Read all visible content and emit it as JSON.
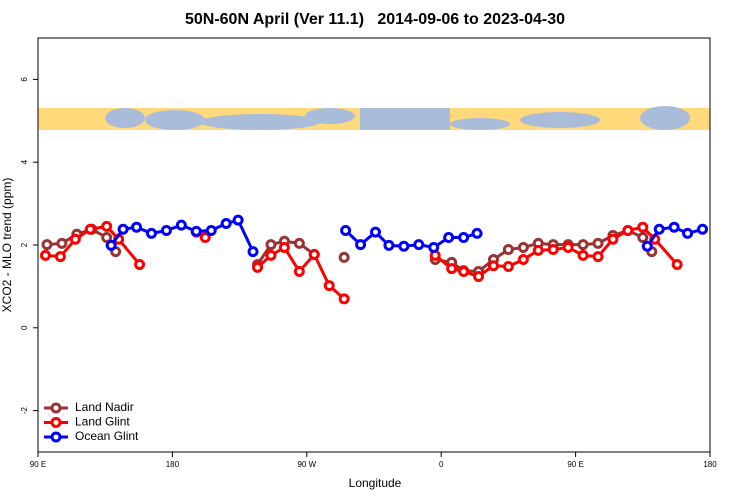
{
  "chart_data": {
    "type": "line",
    "title": "50N-60N April (Ver 11.1)   2014-09-06 to 2023-04-30",
    "xlabel": "Longitude",
    "ylabel": "XCO2 - MLO trend (ppm)",
    "xlim": [
      90,
      540
    ],
    "ylim": [
      -3,
      7
    ],
    "xticks": [
      {
        "value": 90,
        "label": "90 E"
      },
      180,
      {
        "value": 270,
        "label": "90 W"
      },
      {
        "value": 360,
        "label": "0"
      },
      {
        "value": 450,
        "label": "90 E"
      },
      {
        "value": 540,
        "label": "180"
      }
    ],
    "yticks": [
      -2,
      0,
      2,
      4,
      6
    ],
    "legend": "lower left",
    "series": [
      {
        "name": "Land Nadir",
        "color": "#993333",
        "x": [
          96,
          106,
          116,
          126,
          136,
          142,
          null,
          237,
          246,
          255,
          265,
          275,
          null,
          295,
          null,
          356,
          367,
          375,
          385,
          395,
          405,
          415,
          425,
          435,
          445,
          455,
          465,
          475,
          485,
          495,
          501
        ],
        "values": [
          2.01,
          2.04,
          2.26,
          2.38,
          2.18,
          1.84,
          null,
          1.53,
          2.01,
          2.09,
          2.04,
          1.77,
          null,
          1.7,
          null,
          1.65,
          1.58,
          1.38,
          1.36,
          1.65,
          1.89,
          1.94,
          2.04,
          2.01,
          2.01,
          2.01,
          2.04,
          2.23,
          2.35,
          2.18,
          1.84
        ]
      },
      {
        "name": "Land Glint",
        "color": "#ff0000",
        "x": [
          95,
          105,
          115,
          125,
          136,
          144,
          158,
          null,
          196,
          202,
          null,
          237,
          246,
          255,
          265,
          275,
          285,
          295,
          null,
          356,
          367,
          375,
          385,
          395,
          405,
          415,
          425,
          435,
          445,
          455,
          465,
          475,
          485,
          495,
          503,
          518
        ],
        "values": [
          1.75,
          1.72,
          2.14,
          2.38,
          2.45,
          2.14,
          1.53,
          null,
          2.31,
          2.18,
          null,
          1.46,
          1.75,
          1.94,
          1.36,
          1.77,
          1.02,
          0.7,
          null,
          1.75,
          1.43,
          1.36,
          1.24,
          1.5,
          1.48,
          1.65,
          1.87,
          1.89,
          1.94,
          1.75,
          1.72,
          2.14,
          2.35,
          2.43,
          2.14,
          1.53
        ]
      },
      {
        "name": "Ocean Glint",
        "color": "#0000ff",
        "x": [
          139,
          147,
          156,
          166,
          176,
          186,
          196,
          206,
          216,
          224,
          234,
          null,
          296,
          306,
          316,
          325,
          335,
          345,
          355,
          365,
          375,
          384,
          null,
          498,
          506,
          516,
          525,
          535
        ],
        "values": [
          1.99,
          2.38,
          2.43,
          2.28,
          2.35,
          2.48,
          2.33,
          2.35,
          2.52,
          2.6,
          1.84,
          null,
          2.35,
          2.01,
          2.31,
          1.99,
          1.97,
          2.01,
          1.94,
          2.18,
          2.18,
          2.28,
          null,
          1.97,
          2.38,
          2.43,
          2.28,
          2.38
        ]
      }
    ]
  }
}
